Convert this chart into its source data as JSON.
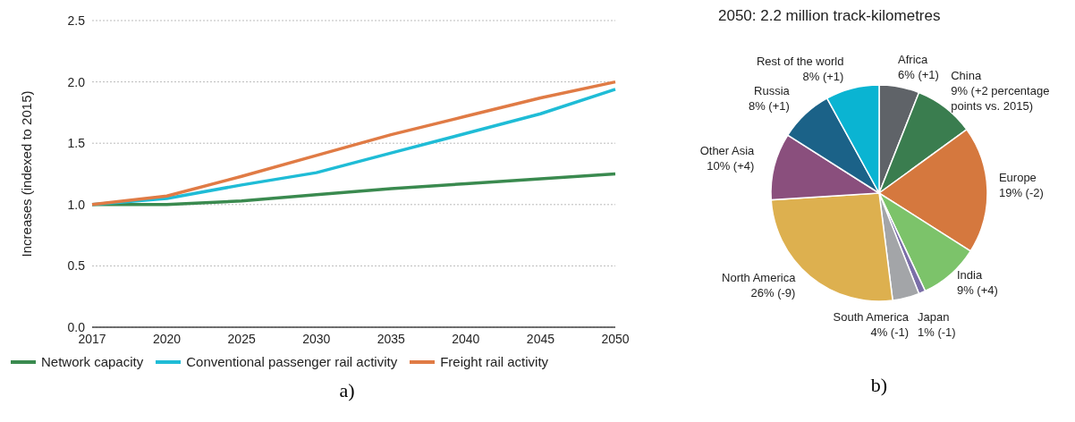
{
  "chart_data": [
    {
      "type": "line",
      "ylabel": "Increases (indexed to 2015)",
      "categories": [
        "2017",
        "2020",
        "2025",
        "2030",
        "2035",
        "2040",
        "2045",
        "2050"
      ],
      "series": [
        {
          "name": "Network capacity",
          "color": "#3a8a4f",
          "values": [
            1.0,
            1.0,
            1.03,
            1.08,
            1.13,
            1.17,
            1.21,
            1.25
          ]
        },
        {
          "name": "Conventional passenger rail activity",
          "color": "#1fbcd6",
          "values": [
            1.0,
            1.05,
            1.16,
            1.26,
            1.42,
            1.58,
            1.74,
            1.94
          ]
        },
        {
          "name": "Freight rail activity",
          "color": "#e07b45",
          "values": [
            1.0,
            1.07,
            1.23,
            1.4,
            1.57,
            1.72,
            1.87,
            2.0
          ]
        }
      ],
      "ylim": [
        0,
        2.5
      ],
      "yticks": [
        {
          "value": 0,
          "label": "0.0"
        },
        {
          "value": 0.5,
          "label": "0.5"
        },
        {
          "value": 1,
          "label": "1.0"
        },
        {
          "value": 1.5,
          "label": "1.5"
        },
        {
          "value": 2,
          "label": "2.0"
        },
        {
          "value": 2.5,
          "label": "2.5"
        }
      ],
      "grid": "y",
      "legend": "bottom",
      "marker": "none",
      "line_style": "solid",
      "annotations": [
        "a)"
      ]
    },
    {
      "type": "pie",
      "title": "2050:  2.2 million track-kilometres",
      "categories": [
        "Africa",
        "China",
        "Europe",
        "India",
        "Japan",
        "South America",
        "North America",
        "Other Asia",
        "Russia",
        "Rest of the world"
      ],
      "values": [
        6,
        9,
        19,
        9,
        1,
        4,
        26,
        10,
        8,
        8
      ],
      "value_labels": [
        "6% (+1)",
        "9% (+2 percentage points vs. 2015)",
        "19% (-2)",
        "9% (+4)",
        "1% (-1)",
        "4% (-1)",
        "26% (-9)",
        "10% (+4)",
        "8% (+1)",
        "8% (+1)"
      ],
      "colors": [
        "#5f6368",
        "#3a7d4f",
        "#d5783e",
        "#7cc36a",
        "#7b6fa8",
        "#a3a5a8",
        "#ddb04f",
        "#8a4f7d",
        "#1b6288",
        "#0ab4d2"
      ],
      "legend": false,
      "annotations": [
        "b)"
      ]
    }
  ]
}
